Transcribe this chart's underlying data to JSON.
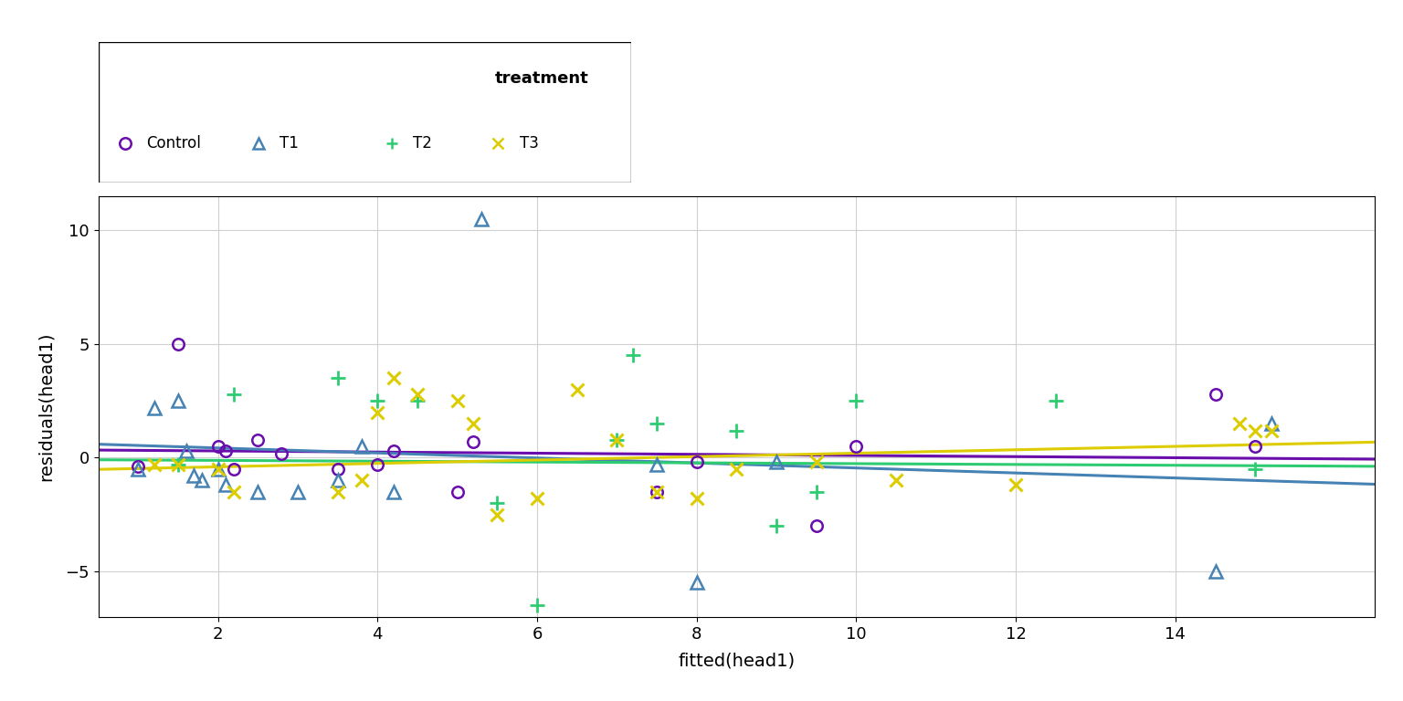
{
  "xlabel": "fitted(head1)",
  "ylabel": "residuals(head1)",
  "xlim": [
    0.5,
    16.5
  ],
  "ylim": [
    -7,
    11.5
  ],
  "xticks": [
    2,
    4,
    6,
    8,
    10,
    12,
    14
  ],
  "yticks": [
    -5,
    0,
    5,
    10
  ],
  "legend_title": "treatment",
  "groups": {
    "Control": {
      "color": "#6A0DAD",
      "marker": "o",
      "mfc": "none",
      "ms": 9,
      "mew": 1.8,
      "fitted": [
        1.0,
        1.5,
        2.0,
        2.1,
        2.2,
        2.5,
        2.8,
        3.5,
        4.0,
        4.2,
        5.0,
        5.2,
        7.5,
        8.0,
        9.5,
        10.0,
        14.5,
        15.0
      ],
      "residuals": [
        -0.4,
        5.0,
        0.5,
        0.3,
        -0.5,
        0.8,
        0.2,
        -0.5,
        -0.3,
        0.3,
        -1.5,
        0.7,
        -1.5,
        -0.2,
        -3.0,
        0.5,
        2.8,
        0.5
      ],
      "trend_intercept": 0.35,
      "trend_slope": -0.025
    },
    "T1": {
      "color": "#4682B4",
      "marker": "^",
      "mfc": "none",
      "ms": 10,
      "mew": 1.8,
      "fitted": [
        1.0,
        1.2,
        1.5,
        1.6,
        1.7,
        1.8,
        2.0,
        2.1,
        2.5,
        3.0,
        3.5,
        3.8,
        4.2,
        5.3,
        7.5,
        8.0,
        9.0,
        14.5,
        15.2
      ],
      "residuals": [
        -0.5,
        2.2,
        2.5,
        0.3,
        -0.8,
        -1.0,
        -0.5,
        -1.2,
        -1.5,
        -1.5,
        -1.0,
        0.5,
        -1.5,
        10.5,
        -0.3,
        -5.5,
        -0.2,
        -5.0,
        1.5
      ],
      "trend_intercept": 0.65,
      "trend_slope": -0.11
    },
    "T2": {
      "color": "#2ECC71",
      "marker": "+",
      "mfc": "#2ECC71",
      "ms": 11,
      "mew": 2.0,
      "fitted": [
        1.5,
        2.2,
        3.5,
        4.0,
        4.5,
        5.5,
        6.0,
        7.0,
        7.2,
        7.5,
        8.5,
        9.0,
        9.5,
        10.0,
        12.5,
        15.0
      ],
      "residuals": [
        -0.3,
        2.8,
        3.5,
        2.5,
        2.5,
        -2.0,
        -6.5,
        0.8,
        4.5,
        1.5,
        1.2,
        -3.0,
        -1.5,
        2.5,
        2.5,
        -0.5
      ],
      "trend_intercept": -0.08,
      "trend_slope": -0.018
    },
    "T3": {
      "color": "#DDCC00",
      "marker": "x",
      "mfc": "#DDCC00",
      "ms": 10,
      "mew": 2.2,
      "fitted": [
        1.2,
        1.5,
        2.0,
        2.2,
        3.5,
        3.8,
        4.0,
        4.2,
        4.5,
        5.0,
        5.2,
        5.5,
        6.0,
        6.5,
        7.0,
        7.5,
        8.0,
        8.5,
        9.5,
        10.5,
        12.0,
        14.8,
        15.0,
        15.2
      ],
      "residuals": [
        -0.3,
        -0.3,
        -0.5,
        -1.5,
        -1.5,
        -1.0,
        2.0,
        3.5,
        2.8,
        2.5,
        1.5,
        -2.5,
        -1.8,
        3.0,
        0.8,
        -1.5,
        -1.8,
        -0.5,
        -0.2,
        -1.0,
        -1.2,
        1.5,
        1.2,
        1.2
      ],
      "trend_intercept": -0.55,
      "trend_slope": 0.075
    }
  },
  "trend_linewidth": 2.2,
  "background_color": "#ffffff",
  "grid_color": "#d0d0d0"
}
